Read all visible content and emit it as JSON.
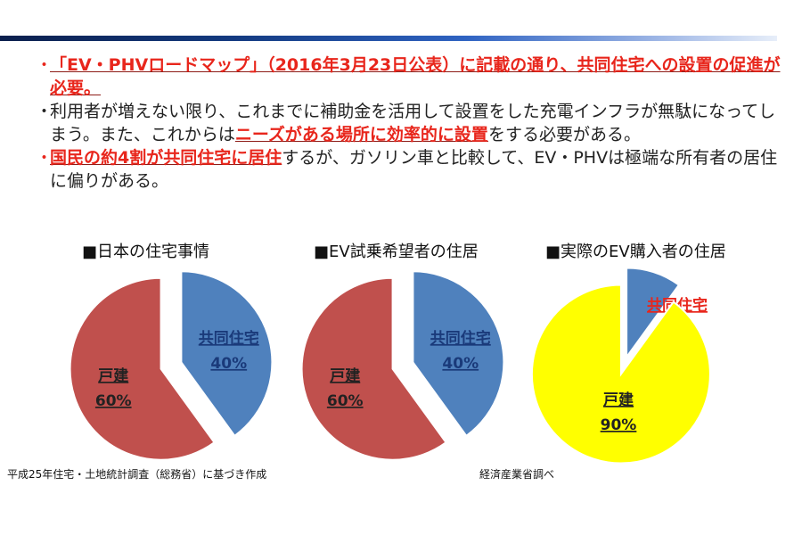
{
  "bullets": {
    "b1": {
      "dot": "・",
      "text": "「EV・PHVロードマップ」（2016年3月23日公表）に記載の通り、共同住宅への設置の促進が必要。"
    },
    "b2": {
      "dot": "・",
      "pre": "利用者が増えない限り、これまでに補助金を活用して設置をした充電インフラが無駄になってしまう。また、これからは",
      "highlight": "ニーズがある場所に効率的に設置",
      "post": "をする必要がある。"
    },
    "b3": {
      "dot": "・",
      "highlight": "国民の約4割が共同住宅に居住",
      "post": "するが、ガソリン車と比較して、EV・PHVは極端な所有者の居住に偏りがある。"
    }
  },
  "colors": {
    "red": "#c0504d",
    "blue": "#4f81bd",
    "yellow": "#ffff00",
    "accent_red": "#e8261c"
  },
  "chart_data": [
    {
      "type": "pie",
      "title": "■日本の住宅事情",
      "slices": [
        {
          "label": "共同住宅",
          "value": 40,
          "value_label": "40%",
          "color": "#4f81bd"
        },
        {
          "label": "戸建",
          "value": 60,
          "value_label": "60%",
          "color": "#c0504d"
        }
      ]
    },
    {
      "type": "pie",
      "title": "■EV試乗希望者の住居",
      "slices": [
        {
          "label": "共同住宅",
          "value": 40,
          "value_label": "40%",
          "color": "#4f81bd"
        },
        {
          "label": "戸建",
          "value": 60,
          "value_label": "60%",
          "color": "#c0504d"
        }
      ]
    },
    {
      "type": "pie",
      "title": "■実際のEV購入者の住居",
      "slices": [
        {
          "label": "共同住宅",
          "value": 10,
          "value_label": "10%",
          "color": "#4f81bd"
        },
        {
          "label": "戸建",
          "value": 90,
          "value_label": "90%",
          "color": "#ffff00"
        }
      ]
    }
  ],
  "sources": {
    "left": "平成25年住宅・土地統計調査（総務省）に基づき作成",
    "right": "経済産業省調べ"
  }
}
